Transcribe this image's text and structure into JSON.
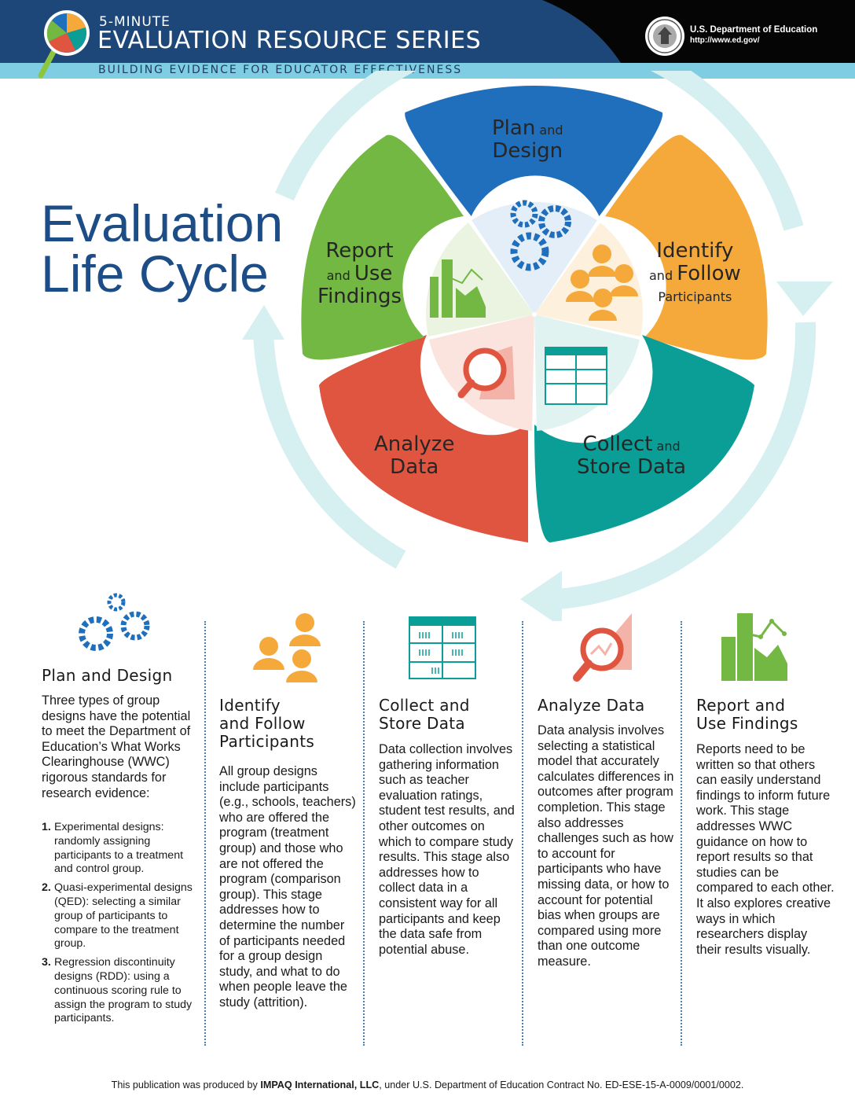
{
  "header": {
    "series_small": "5-MINUTE",
    "series_big": "EVALUATION RESOURCE SERIES",
    "subtitle": "BUILDING EVIDENCE FOR EDUCATOR EFFECTIVENESS",
    "department": "U.S. Department of Education",
    "url": "http://www.ed.gov/",
    "colors": {
      "navy": "#1d4778",
      "light_blue": "#7fcde3",
      "black": "#050505"
    }
  },
  "title": {
    "line1": "Evaluation",
    "line2": "Life Cycle"
  },
  "cycle": {
    "segments": [
      {
        "id": "plan",
        "big1": "Plan",
        "small1": "and",
        "big2": "Design",
        "color": "#1f6fbd",
        "icon": "gears-icon"
      },
      {
        "id": "identify",
        "big1": "Identify",
        "small1": "and",
        "big2": "Follow",
        "small2": "Participants",
        "color": "#f5a93a",
        "icon": "people-icon"
      },
      {
        "id": "collect",
        "big1": "Collect",
        "small1": "and",
        "big2": "Store Data",
        "color": "#0a9e96",
        "icon": "spreadsheet-icon"
      },
      {
        "id": "analyze",
        "big1": "Analyze",
        "big2": "Data",
        "color": "#e05540",
        "icon": "magnifier-chart-icon"
      },
      {
        "id": "report",
        "big1": "Report",
        "small1": "and",
        "big2": "Use",
        "big3": "Findings",
        "color": "#73b843",
        "icon": "bar-chart-icon"
      }
    ],
    "arrow_color": "#d6eff0"
  },
  "columns": {
    "plan": {
      "heading": "Plan and Design",
      "body": "Three types of group designs have the potential to meet the Department of Education’s What Works Clearinghouse (WWC) rigorous standards for research evidence:",
      "designs": [
        {
          "num": "1.",
          "text": "Experimental designs: randomly assigning participants to a treatment and control group."
        },
        {
          "num": "2.",
          "text": "Quasi-experimental designs (QED): selecting a similar group of participants to compare to the treatment group."
        },
        {
          "num": "3.",
          "text": "Regression discontinuity designs (RDD): using a continuous scoring rule to assign the program to study participants."
        }
      ]
    },
    "identify": {
      "heading_l1": "Identify",
      "heading_l2": "and Follow",
      "heading_l3": "Participants",
      "body": "All group designs include participants (e.g., schools, teachers) who are offered the program (treatment group) and those who are not offered the program (comparison group). This stage addresses how to determine the number of participants needed for a group design study, and what to do when people leave the study (attrition)."
    },
    "collect": {
      "heading_l1": "Collect and",
      "heading_l2": "Store Data",
      "body": "Data collection involves gathering information such as teacher evaluation ratings, student test results, and other outcomes on which to compare study results. This stage also addresses how to collect data in a consistent way for all participants and keep the data safe from potential abuse."
    },
    "analyze": {
      "heading": "Analyze Data",
      "body": "Data analysis involves selecting a statistical model that accurately calculates differences in outcomes after program completion. This stage also addresses challenges such as how to account for participants who have missing data, or how to account for potential bias when groups are compared using more than one outcome measure."
    },
    "report": {
      "heading_l1": "Report and",
      "heading_l2": "Use Findings",
      "body": "Reports need to be written so that others can easily understand findings to inform future work. This stage addresses WWC guidance on how to report results so that studies can be compared to each other. It also explores creative ways in which researchers display their results visually."
    }
  },
  "footer": {
    "prefix": "This publication was produced by ",
    "org": "IMPAQ International, LLC",
    "suffix": ", under U.S. Department of Education Contract No. ED-ESE-15-A-0009/0001/0002."
  }
}
